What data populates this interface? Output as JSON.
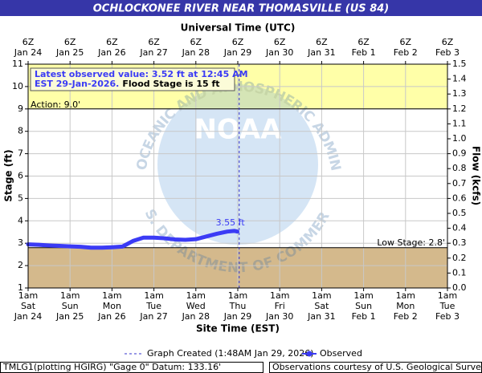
{
  "chart_data": {
    "type": "line",
    "title": "OCHLOCKONEE RIVER NEAR THOMASVILLE (US 84)",
    "top_axis_label": "Universal Time (UTC)",
    "x_label": "Site Time (EST)",
    "y_label": "Stage (ft)",
    "y2_label": "Flow (kcfs)",
    "xlim": [
      "Jan 24 01:00",
      "Feb 03 01:00"
    ],
    "xticks": [
      {
        "value": "Jan 24 01:00",
        "label": [
          "1am",
          "Sat",
          "Jan 24"
        ]
      },
      {
        "value": "Jan 25 01:00",
        "label": [
          "1am",
          "Sun",
          "Jan 25"
        ]
      },
      {
        "value": "Jan 26 01:00",
        "label": [
          "1am",
          "Mon",
          "Jan 26"
        ]
      },
      {
        "value": "Jan 27 01:00",
        "label": [
          "1am",
          "Tue",
          "Jan 27"
        ]
      },
      {
        "value": "Jan 28 01:00",
        "label": [
          "1am",
          "Wed",
          "Jan 28"
        ]
      },
      {
        "value": "Jan 29 01:00",
        "label": [
          "1am",
          "Thu",
          "Jan 29"
        ]
      },
      {
        "value": "Jan 30 01:00",
        "label": [
          "1am",
          "Fri",
          "Jan 30"
        ]
      },
      {
        "value": "Jan 31 01:00",
        "label": [
          "1am",
          "Sat",
          "Jan 31"
        ]
      },
      {
        "value": "Feb 01 01:00",
        "label": [
          "1am",
          "Sun",
          "Feb 1"
        ]
      },
      {
        "value": "Feb 02 01:00",
        "label": [
          "1am",
          "Mon",
          "Feb 2"
        ]
      },
      {
        "value": "Feb 03 01:00",
        "label": [
          "1am",
          "Tue",
          "Feb 3"
        ]
      }
    ],
    "x2ticks": [
      {
        "value": "Jan 24 01:00",
        "label": [
          "6Z",
          "Jan 24"
        ]
      },
      {
        "value": "Jan 25 01:00",
        "label": [
          "6Z",
          "Jan 25"
        ]
      },
      {
        "value": "Jan 26 01:00",
        "label": [
          "6Z",
          "Jan 26"
        ]
      },
      {
        "value": "Jan 27 01:00",
        "label": [
          "6Z",
          "Jan 27"
        ]
      },
      {
        "value": "Jan 28 01:00",
        "label": [
          "6Z",
          "Jan 28"
        ]
      },
      {
        "value": "Jan 29 01:00",
        "label": [
          "6Z",
          "Jan 29"
        ]
      },
      {
        "value": "Jan 30 01:00",
        "label": [
          "6Z",
          "Jan 30"
        ]
      },
      {
        "value": "Jan 31 01:00",
        "label": [
          "6Z",
          "Jan 31"
        ]
      },
      {
        "value": "Feb 01 01:00",
        "label": [
          "6Z",
          "Feb 1"
        ]
      },
      {
        "value": "Feb 02 01:00",
        "label": [
          "6Z",
          "Feb 2"
        ]
      },
      {
        "value": "Feb 03 01:00",
        "label": [
          "6Z",
          "Feb 3"
        ]
      }
    ],
    "ylim": [
      1,
      11
    ],
    "yticks": [
      1,
      2,
      3,
      4,
      5,
      6,
      7,
      8,
      9,
      10,
      11
    ],
    "y2lim": [
      0,
      1.5
    ],
    "y2ticks": [
      {
        "value": 0,
        "label": "0.0"
      },
      {
        "value": 0.1,
        "label": "0.1"
      },
      {
        "value": 0.2,
        "label": "0.2"
      },
      {
        "value": 0.3,
        "label": "0.3"
      },
      {
        "value": 0.4,
        "label": "0.4"
      },
      {
        "value": 0.5,
        "label": "0.5"
      },
      {
        "value": 0.6,
        "label": "0.6"
      },
      {
        "value": 0.7,
        "label": "0.7"
      },
      {
        "value": 0.8,
        "label": "0.8"
      },
      {
        "value": 0.9,
        "label": "0.9"
      },
      {
        "value": 1,
        "label": "1.0"
      },
      {
        "value": 1.1,
        "label": "1.1"
      },
      {
        "value": 1.2,
        "label": "1.2"
      },
      {
        "value": 1.3,
        "label": "1.3"
      },
      {
        "value": 1.4,
        "label": "1.4"
      },
      {
        "value": 1.5,
        "label": "1.5"
      }
    ],
    "grid": true,
    "x": [
      "Jan 24 01:00",
      "Jan 24 07:00",
      "Jan 24 13:00",
      "Jan 24 19:00",
      "Jan 25 01:00",
      "Jan 25 07:00",
      "Jan 25 13:00",
      "Jan 25 19:00",
      "Jan 26 01:00",
      "Jan 26 07:00",
      "Jan 26 13:00",
      "Jan 26 19:00",
      "Jan 27 01:00",
      "Jan 27 07:00",
      "Jan 27 13:00",
      "Jan 27 19:00",
      "Jan 28 01:00",
      "Jan 28 07:00",
      "Jan 28 13:00",
      "Jan 28 19:00",
      "Jan 28 23:00",
      "Jan 29 00:45"
    ],
    "series": [
      {
        "name": "Observed",
        "color": "#3b3bf5",
        "values": [
          2.95,
          2.93,
          2.9,
          2.88,
          2.86,
          2.84,
          2.8,
          2.8,
          2.82,
          2.85,
          3.1,
          3.25,
          3.25,
          3.22,
          3.17,
          3.15,
          3.18,
          3.3,
          3.42,
          3.52,
          3.55,
          3.52
        ]
      }
    ],
    "peak_label": {
      "x": "Jan 28 23:00",
      "value": 3.55,
      "label": "3.55 ft"
    },
    "action": {
      "value": 9,
      "label": "Action: 9.0'",
      "color": "#ffffa8"
    },
    "low_stage": {
      "value": 2.8,
      "label": "Low Stage: 2.8'",
      "color": "#d4b98c"
    },
    "graph_created": {
      "x": "Jan 29 01:48",
      "label": "Graph Created (1:48AM Jan 29, 2026)"
    },
    "info": {
      "latest_line1": "Latest observed value: 3.52 ft at 12:45 AM",
      "latest_line2": "EST 29-Jan-2026.",
      "flood_stage": "Flood Stage is 15 ft"
    },
    "watermark": {
      "logo": "NOAA",
      "ring_top": "NATIONAL OCEANIC AND ATMOSPHERIC ADMINISTRATION",
      "ring_bottom": "U.S. DEPARTMENT OF COMMERCE"
    },
    "footer_left": "TMLG1(plotting HGIRG) \"Gage 0\" Datum: 133.16'",
    "footer_right": "Observations courtesy of U.S. Geological Survey"
  }
}
